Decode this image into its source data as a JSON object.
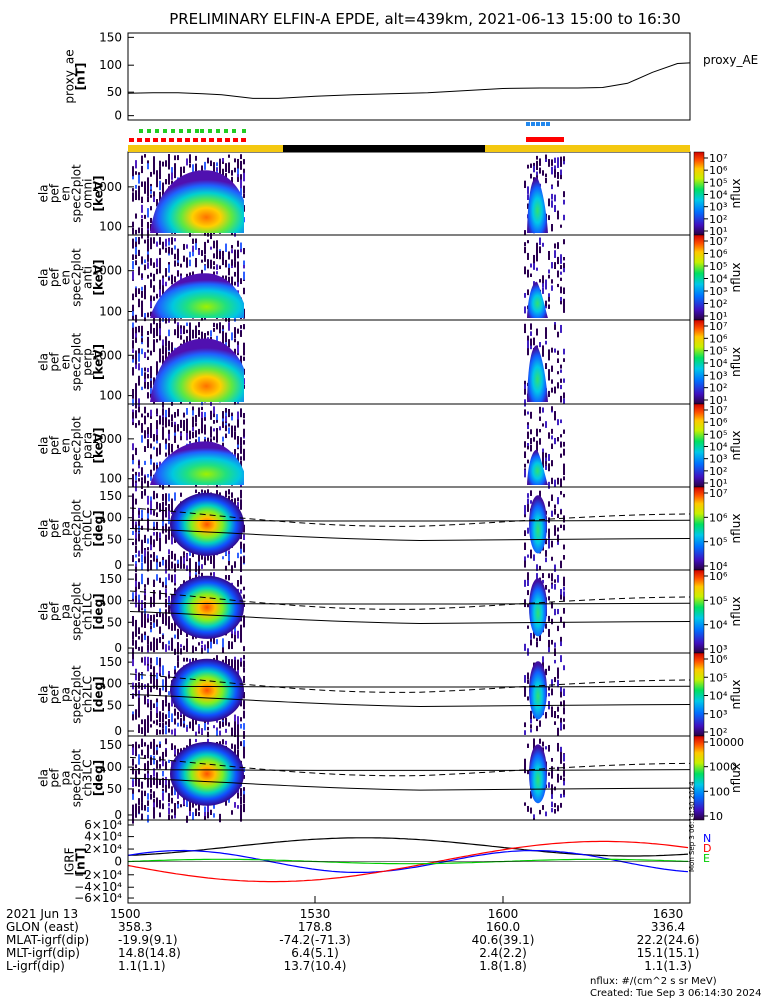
{
  "title": "PRELIMINARY ELFIN-A EPDE, alt=439km, 2021-06-13 15:00 to 16:30",
  "legend_note": "nflux: #/(cm^2 s sr MeV)",
  "created": "Created: Tue Sep  3 06:14:30 2024",
  "side_stamp": "Mon Sep  3 06:14:30 2024",
  "colors": {
    "day": "#f4c810",
    "night": "#000000",
    "dot_green": "#22cc22",
    "dot_red": "#ff0000",
    "dot_blue": "#2288ee",
    "bar_red": "#ff0000"
  },
  "chart_data": [
    {
      "id": "proxy_ae",
      "type": "line",
      "ylabel": [
        "proxy_ae",
        "[nT]"
      ],
      "legend": "proxy_AE",
      "ylim": [
        0,
        150
      ],
      "yticks": [
        "150",
        "100",
        "50",
        "0"
      ],
      "x": [
        0,
        4,
        8,
        12,
        15,
        20,
        24,
        30,
        36,
        42,
        48,
        54,
        60,
        66,
        72,
        76,
        80,
        84,
        88,
        90
      ],
      "y": [
        43,
        44,
        44,
        42,
        40,
        33,
        33,
        37,
        40,
        42,
        44,
        48,
        52,
        53,
        53,
        54,
        62,
        83,
        100,
        101
      ]
    },
    {
      "id": "ela_pef_en_spec2plot_omni",
      "type": "heatmap",
      "ylabel": [
        "ela",
        "pef",
        "en",
        "spec2plot",
        "omni",
        "[keV]"
      ],
      "yticks": [
        "1000",
        "100"
      ],
      "colorbar_label": "nflux",
      "colorbar_ticks": [
        "10⁷",
        "10⁶",
        "10⁵",
        "10⁴",
        "10³",
        "10²",
        "10¹"
      ]
    },
    {
      "id": "ela_pef_en_spec2plot_anti",
      "type": "heatmap",
      "ylabel": [
        "ela",
        "pef",
        "en",
        "spec2plot",
        "anti",
        "[keV]"
      ],
      "yticks": [
        "1000",
        "100"
      ],
      "colorbar_label": "nflux",
      "colorbar_ticks": [
        "10⁷",
        "10⁶",
        "10⁵",
        "10⁴",
        "10³",
        "10²",
        "10¹"
      ]
    },
    {
      "id": "ela_pef_en_spec2plot_perp",
      "type": "heatmap",
      "ylabel": [
        "ela",
        "pef",
        "en",
        "spec2plot",
        "perp",
        "[keV]"
      ],
      "yticks": [
        "1000",
        "100"
      ],
      "colorbar_label": "nflux",
      "colorbar_ticks": [
        "10⁷",
        "10⁶",
        "10⁵",
        "10⁴",
        "10³",
        "10²",
        "10¹"
      ]
    },
    {
      "id": "ela_pef_en_spec2plot_para",
      "type": "heatmap",
      "ylabel": [
        "ela",
        "pef",
        "en",
        "spec2plot",
        "para",
        "[keV]"
      ],
      "yticks": [
        "1000",
        "100"
      ],
      "colorbar_label": "nflux",
      "colorbar_ticks": [
        "10⁷",
        "10⁶",
        "10⁵",
        "10⁴",
        "10³",
        "10²",
        "10¹"
      ]
    },
    {
      "id": "ela_pef_pa_spec2plot_ch0LC",
      "type": "heatmap",
      "ylabel": [
        "ela",
        "pef",
        "pa",
        "spec2plot",
        "ch0LC",
        "[deg]"
      ],
      "yticks": [
        "150",
        "100",
        "50",
        "0"
      ],
      "colorbar_label": "nflux",
      "colorbar_ticks": [
        "10⁷",
        "10⁶",
        "10⁵",
        "10⁴"
      ]
    },
    {
      "id": "ela_pef_pa_spec2plot_ch1LC",
      "type": "heatmap",
      "ylabel": [
        "ela",
        "pef",
        "pa",
        "spec2plot",
        "ch1LC",
        "[deg]"
      ],
      "yticks": [
        "150",
        "100",
        "50",
        "0"
      ],
      "colorbar_label": "nflux",
      "colorbar_ticks": [
        "10⁶",
        "10⁵",
        "10⁴",
        "10³"
      ]
    },
    {
      "id": "ela_pef_pa_spec2plot_ch2LC",
      "type": "heatmap",
      "ylabel": [
        "ela",
        "pef",
        "pa",
        "spec2plot",
        "ch2LC",
        "[deg]"
      ],
      "yticks": [
        "150",
        "100",
        "50",
        "0"
      ],
      "colorbar_label": "nflux",
      "colorbar_ticks": [
        "10⁶",
        "10⁵",
        "10⁴",
        "10³",
        "10²"
      ]
    },
    {
      "id": "ela_pef_pa_spec2plot_ch3LC",
      "type": "heatmap",
      "ylabel": [
        "ela",
        "pef",
        "pa",
        "spec2plot",
        "ch3LC",
        "[deg]"
      ],
      "yticks": [
        "150",
        "100",
        "50",
        "0"
      ],
      "colorbar_label": "nflux",
      "colorbar_ticks": [
        "10000",
        "1000",
        "100",
        "10"
      ]
    },
    {
      "id": "igrf",
      "type": "line",
      "ylabel": [
        "IGRF",
        "[nT]"
      ],
      "yticks": [
        "6×10⁴",
        "4×10⁴",
        "2×10⁴",
        "0",
        "−2×10⁴",
        "−4×10⁴",
        "−6×10⁴"
      ],
      "series": [
        {
          "name": "N",
          "color": "#0000ff"
        },
        {
          "name": "D",
          "color": "#ff0000"
        },
        {
          "name": "E",
          "color": "#00cc00"
        }
      ]
    }
  ],
  "time_table": {
    "rows": [
      {
        "label": "2021 Jun 13",
        "values": [
          "1500",
          "1530",
          "1600",
          "1630"
        ]
      },
      {
        "label": "GLON (east)",
        "values": [
          "358.3",
          "178.8",
          "160.0",
          "336.4"
        ]
      },
      {
        "label": "MLAT-igrf(dip)",
        "values": [
          "-19.9(9.1)",
          "-74.2(-71.3)",
          "40.6(39.1)",
          "22.2(24.6)"
        ]
      },
      {
        "label": "MLT-igrf(dip)",
        "values": [
          "14.8(14.8)",
          "6.4(5.1)",
          "2.4(2.2)",
          "15.1(15.1)"
        ]
      },
      {
        "label": "L-igrf(dip)",
        "values": [
          "1.1(1.1)",
          "13.7(10.4)",
          "1.8(1.8)",
          "1.1(1.3)"
        ]
      }
    ]
  }
}
